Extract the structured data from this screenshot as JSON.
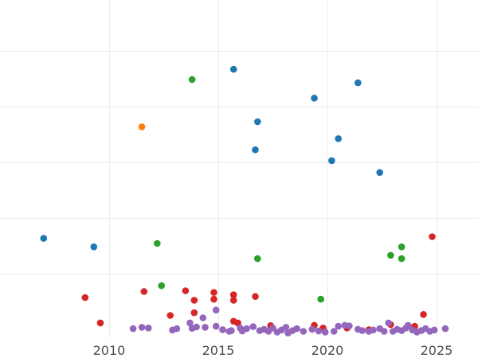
{
  "chart_data": {
    "type": "scatter",
    "title": "",
    "xlabel": "",
    "ylabel": "",
    "xlim": [
      2005.0,
      2026.9
    ],
    "ylim": [
      0,
      100
    ],
    "grid": true,
    "legend": "none",
    "x_ticks": [
      {
        "value": 2010,
        "label": "2010"
      },
      {
        "value": 2015,
        "label": "2015"
      },
      {
        "value": 2020,
        "label": "2020"
      },
      {
        "value": 2025,
        "label": "2025"
      }
    ],
    "y_gridlines": [
      19,
      35.5,
      52,
      68.5,
      85,
      101.5
    ],
    "series": [
      {
        "color": "#1f77b4",
        "points": [
          {
            "x": 2007.0,
            "y": 29.5
          },
          {
            "x": 2009.3,
            "y": 27.0
          },
          {
            "x": 2015.7,
            "y": 79.5
          },
          {
            "x": 2016.8,
            "y": 64.0
          },
          {
            "x": 2016.7,
            "y": 55.7
          },
          {
            "x": 2019.4,
            "y": 71.0
          },
          {
            "x": 2020.2,
            "y": 52.5
          },
          {
            "x": 2020.5,
            "y": 59.0
          },
          {
            "x": 2021.4,
            "y": 75.5
          },
          {
            "x": 2022.4,
            "y": 49.0
          }
        ]
      },
      {
        "color": "#ff7f0e",
        "points": [
          {
            "x": 2011.5,
            "y": 62.5
          }
        ]
      },
      {
        "color": "#2ca02c",
        "points": [
          {
            "x": 2013.8,
            "y": 76.5
          },
          {
            "x": 2012.2,
            "y": 28.0
          },
          {
            "x": 2012.4,
            "y": 15.5
          },
          {
            "x": 2016.8,
            "y": 23.5
          },
          {
            "x": 2019.7,
            "y": 11.5
          },
          {
            "x": 2022.9,
            "y": 24.5
          },
          {
            "x": 2023.4,
            "y": 27.0
          },
          {
            "x": 2023.4,
            "y": 23.5
          }
        ]
      },
      {
        "color": "#d62728",
        "points": [
          {
            "x": 2008.9,
            "y": 12.0
          },
          {
            "x": 2009.6,
            "y": 4.5
          },
          {
            "x": 2011.6,
            "y": 13.8
          },
          {
            "x": 2012.8,
            "y": 6.7
          },
          {
            "x": 2013.5,
            "y": 14.0
          },
          {
            "x": 2013.9,
            "y": 11.2
          },
          {
            "x": 2013.9,
            "y": 7.5
          },
          {
            "x": 2014.8,
            "y": 13.5
          },
          {
            "x": 2014.8,
            "y": 11.5
          },
          {
            "x": 2015.7,
            "y": 12.8
          },
          {
            "x": 2015.7,
            "y": 11.2
          },
          {
            "x": 2015.7,
            "y": 5.0
          },
          {
            "x": 2015.9,
            "y": 4.5
          },
          {
            "x": 2016.7,
            "y": 12.3
          },
          {
            "x": 2017.4,
            "y": 3.7
          },
          {
            "x": 2019.4,
            "y": 3.8
          },
          {
            "x": 2019.8,
            "y": 3.0
          },
          {
            "x": 2020.9,
            "y": 3.0
          },
          {
            "x": 2021.9,
            "y": 2.5
          },
          {
            "x": 2022.9,
            "y": 4.0
          },
          {
            "x": 2024.0,
            "y": 3.5
          },
          {
            "x": 2024.4,
            "y": 7.0
          },
          {
            "x": 2024.8,
            "y": 30.0
          }
        ]
      },
      {
        "color": "#9467bd",
        "points": [
          {
            "x": 2011.1,
            "y": 2.8
          },
          {
            "x": 2011.5,
            "y": 3.2
          },
          {
            "x": 2011.8,
            "y": 3.0
          },
          {
            "x": 2012.9,
            "y": 2.4
          },
          {
            "x": 2013.1,
            "y": 2.8
          },
          {
            "x": 2013.7,
            "y": 4.5
          },
          {
            "x": 2013.8,
            "y": 2.9
          },
          {
            "x": 2014.0,
            "y": 3.3
          },
          {
            "x": 2014.3,
            "y": 6.0
          },
          {
            "x": 2014.4,
            "y": 3.2
          },
          {
            "x": 2014.9,
            "y": 3.5
          },
          {
            "x": 2014.9,
            "y": 8.3
          },
          {
            "x": 2015.2,
            "y": 2.5
          },
          {
            "x": 2015.5,
            "y": 2.0
          },
          {
            "x": 2015.6,
            "y": 2.2
          },
          {
            "x": 2016.0,
            "y": 3.0
          },
          {
            "x": 2016.1,
            "y": 2.1
          },
          {
            "x": 2016.3,
            "y": 2.8
          },
          {
            "x": 2016.6,
            "y": 3.4
          },
          {
            "x": 2016.9,
            "y": 2.2
          },
          {
            "x": 2017.1,
            "y": 2.6
          },
          {
            "x": 2017.3,
            "y": 2.0
          },
          {
            "x": 2017.5,
            "y": 3.0
          },
          {
            "x": 2017.7,
            "y": 1.8
          },
          {
            "x": 2017.9,
            "y": 2.4
          },
          {
            "x": 2018.1,
            "y": 3.2
          },
          {
            "x": 2018.2,
            "y": 1.5
          },
          {
            "x": 2018.4,
            "y": 2.2
          },
          {
            "x": 2018.6,
            "y": 2.8
          },
          {
            "x": 2018.9,
            "y": 2.0
          },
          {
            "x": 2019.3,
            "y": 2.6
          },
          {
            "x": 2019.6,
            "y": 2.1
          },
          {
            "x": 2019.9,
            "y": 1.8
          },
          {
            "x": 2020.3,
            "y": 2.0
          },
          {
            "x": 2020.5,
            "y": 3.5
          },
          {
            "x": 2020.8,
            "y": 3.8
          },
          {
            "x": 2021.0,
            "y": 3.6
          },
          {
            "x": 2021.4,
            "y": 2.6
          },
          {
            "x": 2021.6,
            "y": 2.2
          },
          {
            "x": 2021.9,
            "y": 2.0
          },
          {
            "x": 2022.1,
            "y": 2.4
          },
          {
            "x": 2022.4,
            "y": 2.8
          },
          {
            "x": 2022.6,
            "y": 2.0
          },
          {
            "x": 2022.8,
            "y": 4.5
          },
          {
            "x": 2023.0,
            "y": 2.0
          },
          {
            "x": 2023.2,
            "y": 2.6
          },
          {
            "x": 2023.4,
            "y": 2.2
          },
          {
            "x": 2023.6,
            "y": 3.0
          },
          {
            "x": 2023.7,
            "y": 3.8
          },
          {
            "x": 2023.9,
            "y": 2.4
          },
          {
            "x": 2024.1,
            "y": 1.8
          },
          {
            "x": 2024.3,
            "y": 2.2
          },
          {
            "x": 2024.5,
            "y": 2.8
          },
          {
            "x": 2024.7,
            "y": 2.0
          },
          {
            "x": 2024.9,
            "y": 2.4
          },
          {
            "x": 2025.4,
            "y": 2.8
          }
        ]
      }
    ]
  }
}
